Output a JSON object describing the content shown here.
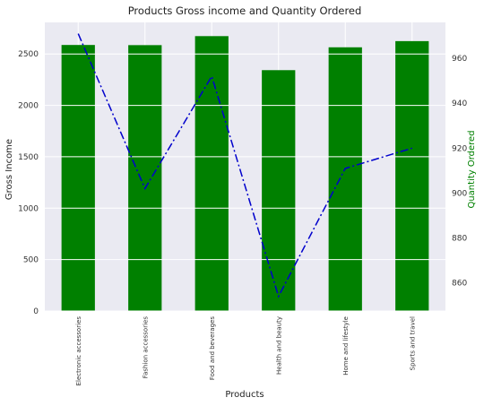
{
  "chart_data": {
    "type": "bar",
    "title": "Products Gross income and Quantity Ordered",
    "xlabel": "Products",
    "ylabel": "Gross Income",
    "y2label": "Quantity Ordered",
    "categories": [
      "Electronic accessories",
      "Fashion accessories",
      "Food and beverages",
      "Health and beauty",
      "Home and lifestyle",
      "Sports and travel"
    ],
    "series": [
      {
        "values": [
          2587.5,
          2586.0,
          2673.6,
          2342.6,
          2564.9,
          2625.0
        ],
        "kind": "bar",
        "axis": "left",
        "color": "#008000"
      },
      {
        "values": [
          971,
          902,
          952,
          854,
          911,
          920
        ],
        "kind": "line",
        "axis": "right",
        "color": "#0000cc",
        "linestyle": "dash-dot"
      }
    ],
    "ylim": [
      0,
      2807
    ],
    "y2lim": [
      847.5,
      976
    ],
    "yticks": [
      0,
      500,
      1000,
      1500,
      2000,
      2500
    ],
    "y2ticks": [
      860,
      880,
      900,
      920,
      940,
      960
    ],
    "grid": true,
    "background": "#eaeaf2"
  }
}
